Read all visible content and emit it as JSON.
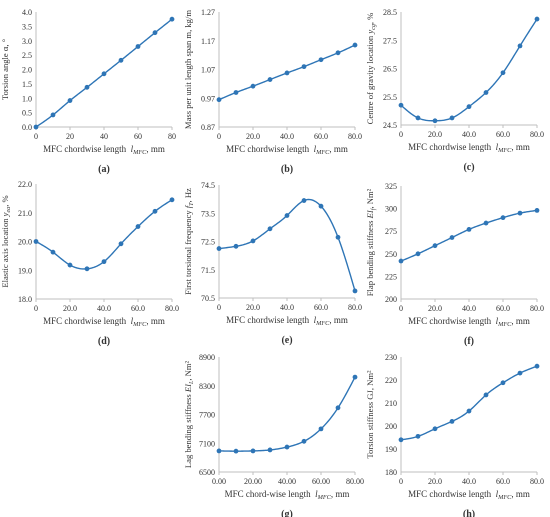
{
  "figure": {
    "series_color": "#2E75B6",
    "axis_color": "#BFBFBF",
    "text_color": "#333333"
  },
  "chart_data": [
    {
      "id": "a",
      "type": "line",
      "panel_label": "(a)",
      "ylabel": "Torsion angle α, °",
      "xlabel": "MFC chordwise length",
      "xlabel_symbol": "l_MFC",
      "xlabel_unit": ", mm",
      "xlim": [
        0,
        80
      ],
      "xticks": [
        "0",
        "20",
        "40",
        "60",
        "80"
      ],
      "ylim": [
        0,
        4
      ],
      "yticks": [
        "0.0",
        "0.5",
        "1.0",
        "1.5",
        "2.0",
        "2.5",
        "3.0",
        "3.5",
        "4.0"
      ],
      "x": [
        0,
        10,
        20,
        30,
        40,
        50,
        60,
        70,
        80
      ],
      "y": [
        0.0,
        0.42,
        0.92,
        1.38,
        1.85,
        2.32,
        2.8,
        3.28,
        3.75
      ]
    },
    {
      "id": "b",
      "type": "line",
      "panel_label": "(b)",
      "ylabel": "Mass per unit length span m, kg/m",
      "xlabel": "MFC chordwise length",
      "xlabel_symbol": "l_MFC",
      "xlabel_unit": ", mm",
      "xlim": [
        0,
        80
      ],
      "xticks": [
        "0",
        "20.0",
        "40.0",
        "60.0",
        "80.0"
      ],
      "ylim": [
        0.87,
        1.27
      ],
      "yticks": [
        "0.87",
        "0.97",
        "1.07",
        "1.17",
        "1.27"
      ],
      "x": [
        0,
        10,
        20,
        30,
        40,
        50,
        60,
        70,
        80
      ],
      "y": [
        0.965,
        0.99,
        1.012,
        1.035,
        1.058,
        1.08,
        1.104,
        1.128,
        1.155
      ]
    },
    {
      "id": "c",
      "type": "line",
      "panel_label": "(c)",
      "ylabel": "Centre of gravity location y_cg, %",
      "xlabel": "MFC chordwise length",
      "xlabel_symbol": "l_MFC",
      "xlabel_unit": ", mm",
      "xlim": [
        0,
        80
      ],
      "xticks": [
        "0",
        "20.0",
        "40.0",
        "60.0",
        "80.0"
      ],
      "ylim": [
        24.5,
        28.5
      ],
      "yticks": [
        "24.5",
        "25.5",
        "26.5",
        "27.5",
        "28.5"
      ],
      "x": [
        0,
        10,
        20,
        30,
        40,
        50,
        60,
        70,
        80
      ],
      "y": [
        25.2,
        24.75,
        24.65,
        24.75,
        25.15,
        25.65,
        26.35,
        27.3,
        28.25
      ]
    },
    {
      "id": "d",
      "type": "line",
      "panel_label": "(d)",
      "ylabel": "Elastic axis location y_ea, %",
      "xlabel": "MFC chordwise length",
      "xlabel_symbol": "l_MFC",
      "xlabel_unit": ", mm",
      "xlim": [
        0,
        80
      ],
      "xticks": [
        "0",
        "20.0",
        "40.0",
        "60.0",
        "80.0"
      ],
      "ylim": [
        18,
        22
      ],
      "yticks": [
        "18.0",
        "19.0",
        "20.0",
        "21.0",
        "22.0"
      ],
      "x": [
        0,
        10,
        20,
        30,
        40,
        50,
        60,
        70,
        80
      ],
      "y": [
        20.0,
        19.63,
        19.18,
        19.05,
        19.3,
        19.92,
        20.52,
        21.05,
        21.45
      ]
    },
    {
      "id": "e",
      "type": "line",
      "panel_label": "(e)",
      "ylabel": "First torsional frequency f_T, Hz",
      "xlabel": "MFC chordwise length",
      "xlabel_symbol": "l_MFC",
      "xlabel_unit": ", mm",
      "xlim": [
        0,
        80
      ],
      "xticks": [
        "0",
        "20.0",
        "40.0",
        "60.0",
        "80.0"
      ],
      "ylim": [
        70.5,
        74.5
      ],
      "yticks": [
        "70.5",
        "71.5",
        "72.5",
        "73.5",
        "74.5"
      ],
      "x": [
        0,
        10,
        20,
        30,
        40,
        50,
        60,
        70,
        80
      ],
      "y": [
        72.25,
        72.33,
        72.52,
        72.95,
        73.42,
        73.95,
        73.75,
        72.65,
        70.75
      ]
    },
    {
      "id": "f",
      "type": "line",
      "panel_label": "(f)",
      "ylabel": "Flap bending stiffness EI_f, Nm²",
      "xlabel": "MFC chordwise length",
      "xlabel_symbol": "l_MFC",
      "xlabel_unit": ", mm",
      "xlim": [
        0,
        80
      ],
      "xticks": [
        "0",
        "20.0",
        "40.0",
        "60.0",
        "80.0"
      ],
      "ylim": [
        200,
        325
      ],
      "yticks": [
        "200",
        "225",
        "250",
        "275",
        "300",
        "325"
      ],
      "x": [
        0,
        10,
        20,
        30,
        40,
        50,
        60,
        70,
        80
      ],
      "y": [
        242,
        250,
        259,
        268,
        277,
        284,
        290,
        295,
        298
      ]
    },
    {
      "id": "g",
      "type": "line",
      "panel_label": "(g)",
      "ylabel": "Lag bending stiffness EI_L, Nm²",
      "xlabel": "MFC chord-wise length",
      "xlabel_symbol": "l_MFC",
      "xlabel_unit": ", mm",
      "xlim": [
        0,
        80
      ],
      "xticks": [
        "0.00",
        "20.00",
        "40.00",
        "60.00",
        "80.00"
      ],
      "ylim": [
        6500,
        8900
      ],
      "yticks": [
        "6500",
        "7100",
        "7700",
        "8300",
        "8900"
      ],
      "x": [
        0,
        10,
        20,
        30,
        40,
        50,
        60,
        70,
        80
      ],
      "y": [
        6940,
        6935,
        6940,
        6960,
        7020,
        7140,
        7400,
        7840,
        8480
      ]
    },
    {
      "id": "h",
      "type": "line",
      "panel_label": "(h)",
      "ylabel": "Torsion stiffness GJ, Nm²",
      "xlabel": "MFC chordwise length",
      "xlabel_symbol": "l_MFC",
      "xlabel_unit": ", mm",
      "xlim": [
        0,
        80
      ],
      "xticks": [
        "0",
        "20.0",
        "40.0",
        "60.0",
        "80.0"
      ],
      "ylim": [
        180,
        230
      ],
      "yticks": [
        "180",
        "190",
        "200",
        "210",
        "220",
        "230"
      ],
      "x": [
        0,
        10,
        20,
        30,
        40,
        50,
        60,
        70,
        80
      ],
      "y": [
        194,
        195.5,
        198.8,
        202,
        206.5,
        213.5,
        218.8,
        223,
        226
      ]
    }
  ]
}
